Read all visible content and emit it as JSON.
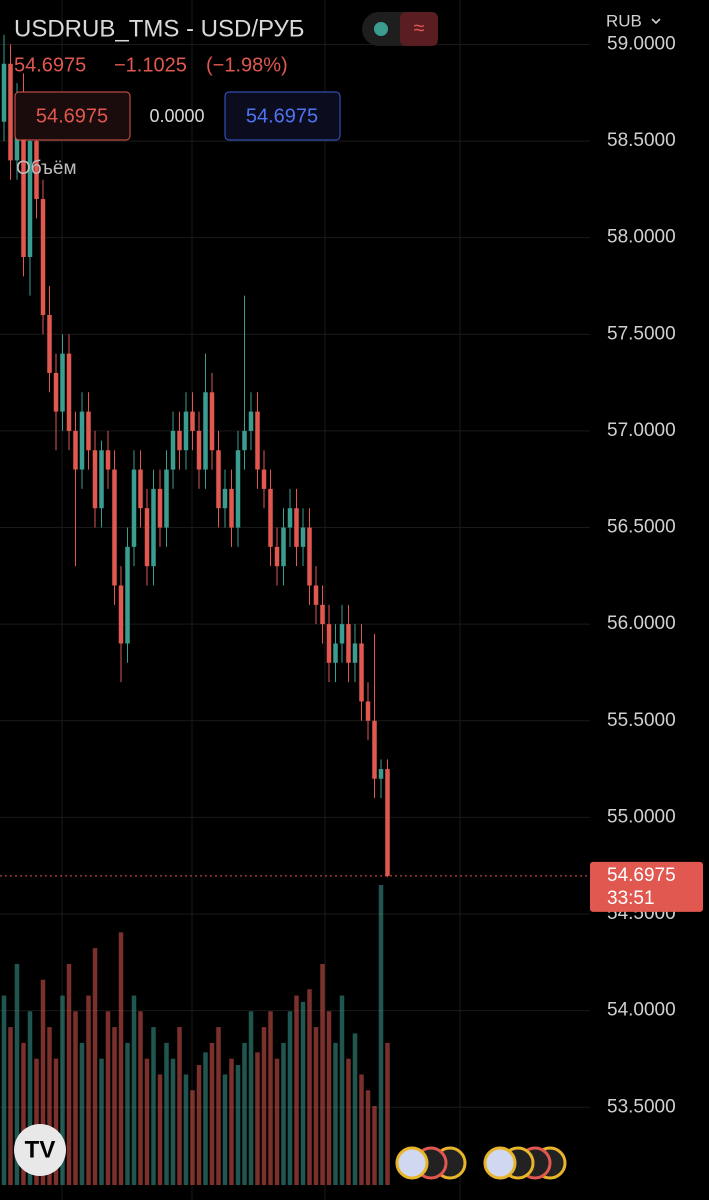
{
  "chart_data": {
    "type": "candlestick",
    "title": "USDRUB_TMS - USD/РУБ",
    "header": {
      "last": "54.6975",
      "change": "−1.1025",
      "change_pct": "(−1.98%)"
    },
    "ohlc_boxes": [
      "54.6975",
      "0.0000",
      "54.6975"
    ],
    "volume_label": "Объём",
    "currency": "RUB",
    "last_price": 54.6975,
    "countdown": "33:51",
    "up_color": "#3a9d8f",
    "down_color": "#e0584f",
    "ylim": [
      53.02,
      59.23
    ],
    "yticks": [
      {
        "value": 59,
        "label": "59.0000"
      },
      {
        "value": 58.5,
        "label": "58.5000"
      },
      {
        "value": 58,
        "label": "58.0000"
      },
      {
        "value": 57.5,
        "label": "57.5000"
      },
      {
        "value": 57,
        "label": "57.0000"
      },
      {
        "value": 56.5,
        "label": "56.5000"
      },
      {
        "value": 56,
        "label": "56.0000"
      },
      {
        "value": 55.5,
        "label": "55.5000"
      },
      {
        "value": 55,
        "label": "55.0000"
      },
      {
        "value": 54.5,
        "label": "54.5000"
      },
      {
        "value": 54,
        "label": "54.0000"
      },
      {
        "value": 53.5,
        "label": "53.5000"
      }
    ],
    "grid": true,
    "open": [
      58.6,
      58.9,
      58.4,
      58.7,
      57.9,
      58.5,
      58.2,
      57.6,
      57.3,
      57.1,
      57.4,
      57.0,
      56.8,
      57.1,
      56.9,
      56.6,
      56.9,
      56.8,
      56.2,
      55.9,
      56.4,
      56.8,
      56.6,
      56.3,
      56.7,
      56.5,
      56.8,
      57.0,
      56.9,
      57.1,
      57.0,
      56.8,
      57.2,
      56.9,
      56.6,
      56.7,
      56.5,
      56.9,
      57.0,
      57.1,
      56.8,
      56.7,
      56.4,
      56.3,
      56.5,
      56.6,
      56.4,
      56.5,
      56.2,
      56.1,
      56.0,
      55.8,
      55.9,
      56.0,
      55.8,
      55.9,
      55.6,
      55.5,
      55.2,
      55.25
    ],
    "high": [
      59.05,
      59.0,
      58.8,
      58.85,
      58.6,
      58.6,
      58.3,
      57.75,
      57.4,
      57.5,
      57.5,
      57.1,
      57.2,
      57.2,
      57.0,
      56.95,
      57.0,
      56.9,
      56.3,
      56.5,
      56.9,
      56.9,
      56.7,
      56.8,
      56.8,
      56.9,
      57.1,
      57.1,
      57.2,
      57.2,
      57.1,
      57.4,
      57.3,
      57.0,
      56.8,
      56.8,
      57.0,
      57.7,
      57.2,
      57.2,
      56.9,
      56.8,
      56.5,
      56.6,
      56.7,
      56.7,
      56.6,
      56.6,
      56.3,
      56.2,
      56.1,
      56.0,
      56.1,
      56.1,
      56.0,
      56.0,
      55.7,
      55.95,
      55.3,
      55.3
    ],
    "low": [
      58.5,
      58.3,
      58.3,
      57.8,
      57.7,
      58.1,
      57.5,
      57.2,
      56.9,
      57.0,
      56.9,
      56.3,
      56.7,
      56.8,
      56.5,
      56.5,
      56.7,
      56.1,
      55.7,
      55.8,
      56.3,
      56.5,
      56.2,
      56.2,
      56.4,
      56.4,
      56.7,
      56.8,
      56.8,
      56.9,
      56.7,
      56.7,
      56.8,
      56.5,
      56.5,
      56.4,
      56.4,
      56.8,
      56.9,
      56.7,
      56.6,
      56.3,
      56.2,
      56.2,
      56.4,
      56.3,
      56.3,
      56.1,
      56.0,
      55.9,
      55.7,
      55.7,
      55.8,
      55.7,
      55.7,
      55.5,
      55.4,
      55.1,
      55.1,
      54.69
    ],
    "close": [
      58.9,
      58.4,
      58.7,
      57.9,
      58.5,
      58.2,
      57.6,
      57.3,
      57.1,
      57.4,
      57.0,
      56.8,
      57.1,
      56.9,
      56.6,
      56.9,
      56.8,
      56.2,
      55.9,
      56.4,
      56.8,
      56.6,
      56.3,
      56.7,
      56.5,
      56.8,
      57.0,
      56.9,
      57.1,
      57.0,
      56.8,
      57.2,
      56.9,
      56.6,
      56.7,
      56.5,
      56.9,
      57.0,
      57.1,
      56.8,
      56.7,
      56.4,
      56.3,
      56.5,
      56.6,
      56.4,
      56.5,
      56.2,
      56.1,
      56.0,
      55.8,
      55.9,
      56.0,
      55.8,
      55.9,
      55.6,
      55.5,
      55.2,
      55.25,
      54.6975
    ],
    "volume": [
      60,
      50,
      70,
      45,
      55,
      40,
      65,
      50,
      40,
      60,
      70,
      55,
      45,
      60,
      75,
      40,
      55,
      50,
      80,
      45,
      60,
      55,
      40,
      50,
      35,
      45,
      40,
      50,
      35,
      30,
      38,
      42,
      45,
      50,
      35,
      40,
      38,
      45,
      55,
      42,
      50,
      55,
      40,
      45,
      55,
      60,
      58,
      62,
      50,
      70,
      55,
      45,
      60,
      40,
      48,
      35,
      30,
      25,
      95,
      45
    ]
  }
}
